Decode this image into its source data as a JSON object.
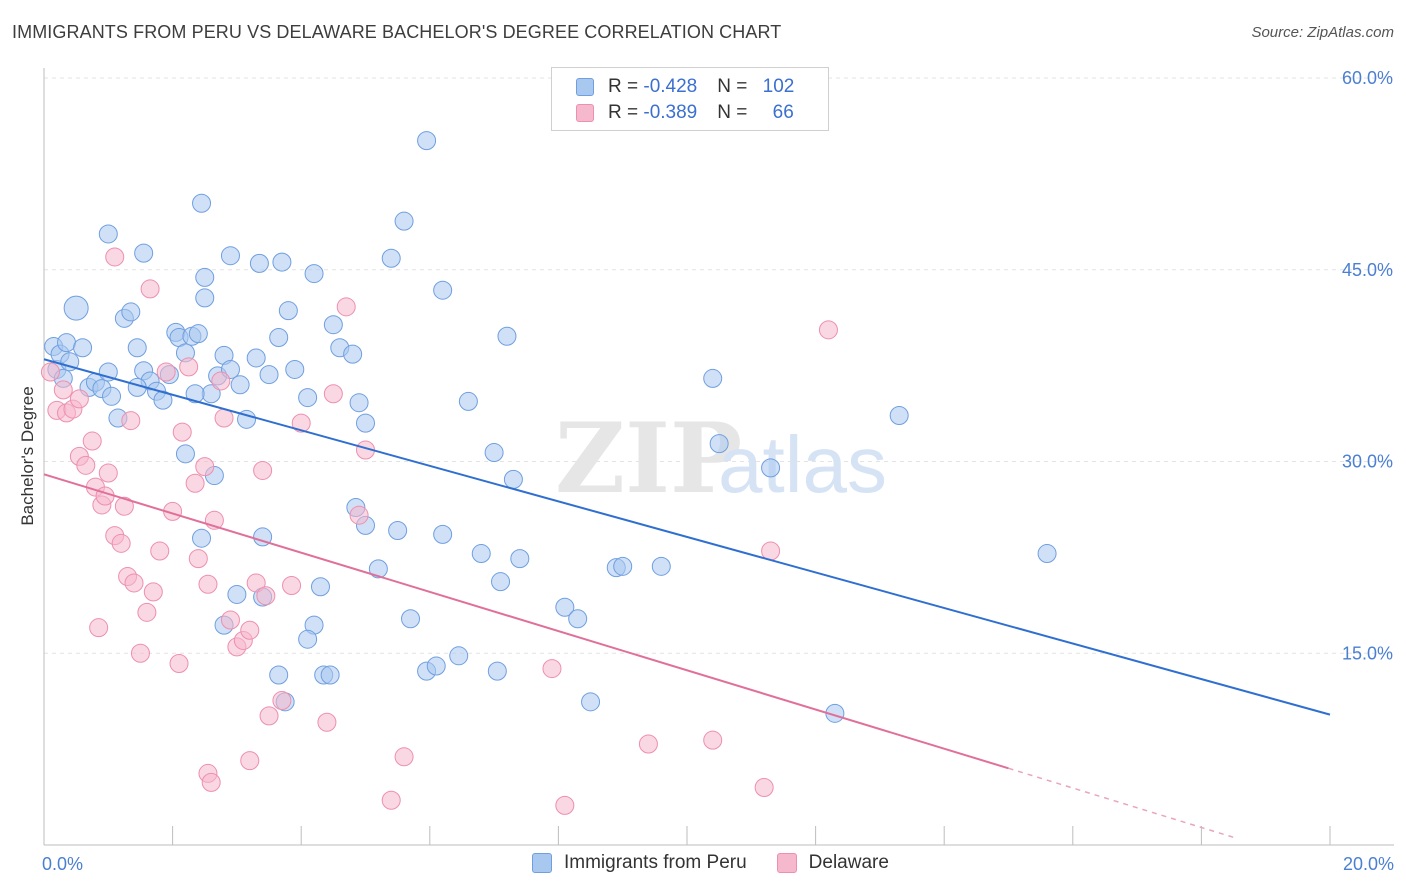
{
  "header": {
    "title": "IMMIGRANTS FROM PERU VS DELAWARE BACHELOR'S DEGREE CORRELATION CHART",
    "source": "Source: ZipAtlas.com"
  },
  "legend_top": {
    "rows": [
      {
        "r_label": "R = ",
        "r_value": "-0.428",
        "n_label": "N = ",
        "n_value": "102",
        "color": "#a9c8f0"
      },
      {
        "r_label": "R = ",
        "r_value": "-0.389",
        "n_label": "N = ",
        "n_value": "66",
        "color": "#f5b8cc"
      }
    ]
  },
  "legend_bottom": {
    "items": [
      {
        "label": "Immigrants from Peru",
        "color": "#a9c8f0"
      },
      {
        "label": "Delaware",
        "color": "#f5b8cc"
      }
    ]
  },
  "chart_data": {
    "type": "scatter",
    "xlabel": "",
    "ylabel": "Bachelor's Degree",
    "xlim": [
      0,
      20
    ],
    "ylim": [
      0,
      60
    ],
    "x_tick_labels": [
      "0.0%",
      "20.0%"
    ],
    "y_tick_values": [
      15,
      30,
      45,
      60
    ],
    "y_tick_labels": [
      "15.0%",
      "30.0%",
      "45.0%",
      "60.0%"
    ],
    "grid": true,
    "watermark": {
      "zip": "ZIP",
      "atlas": "atlas"
    },
    "series": [
      {
        "name": "Immigrants from Peru",
        "color": "#6f9fe0",
        "fill": "#a9c8f0",
        "trend": {
          "x0": 0.0,
          "y0": 38.0,
          "x1": 20.0,
          "y1": 10.2,
          "dash_from": null
        },
        "points": [
          [
            0.15,
            39.0
          ],
          [
            0.2,
            37.2
          ],
          [
            0.25,
            38.4
          ],
          [
            0.3,
            36.5
          ],
          [
            0.35,
            39.3
          ],
          [
            0.4,
            37.8
          ],
          [
            0.5,
            42.0
          ],
          [
            0.6,
            38.9
          ],
          [
            0.7,
            35.8
          ],
          [
            0.8,
            36.2
          ],
          [
            0.9,
            35.7
          ],
          [
            1.0,
            37.0
          ],
          [
            1.05,
            35.1
          ],
          [
            1.15,
            33.4
          ],
          [
            1.25,
            41.2
          ],
          [
            1.35,
            41.7
          ],
          [
            1.45,
            38.9
          ],
          [
            1.55,
            37.1
          ],
          [
            1.65,
            36.3
          ],
          [
            1.75,
            35.5
          ],
          [
            1.85,
            34.8
          ],
          [
            1.95,
            36.8
          ],
          [
            2.05,
            40.1
          ],
          [
            2.1,
            39.7
          ],
          [
            2.2,
            38.5
          ],
          [
            2.3,
            39.8
          ],
          [
            2.4,
            40.0
          ],
          [
            2.5,
            42.8
          ],
          [
            2.6,
            35.3
          ],
          [
            2.7,
            36.7
          ],
          [
            2.8,
            38.3
          ],
          [
            2.9,
            37.2
          ],
          [
            1.0,
            47.8
          ],
          [
            1.55,
            46.3
          ],
          [
            2.45,
            50.2
          ],
          [
            2.5,
            44.4
          ],
          [
            2.9,
            46.1
          ],
          [
            3.35,
            45.5
          ],
          [
            3.7,
            45.6
          ],
          [
            4.2,
            44.7
          ],
          [
            3.05,
            36.0
          ],
          [
            3.15,
            33.3
          ],
          [
            3.3,
            38.1
          ],
          [
            3.5,
            36.8
          ],
          [
            3.65,
            39.7
          ],
          [
            3.8,
            41.8
          ],
          [
            3.9,
            37.2
          ],
          [
            4.1,
            35.0
          ],
          [
            4.5,
            40.7
          ],
          [
            4.6,
            38.9
          ],
          [
            4.8,
            38.4
          ],
          [
            4.9,
            34.6
          ],
          [
            5.0,
            33.0
          ],
          [
            5.4,
            45.9
          ],
          [
            5.6,
            48.8
          ],
          [
            5.95,
            55.1
          ],
          [
            6.2,
            43.4
          ],
          [
            7.2,
            39.8
          ],
          [
            6.6,
            34.7
          ],
          [
            7.0,
            30.7
          ],
          [
            7.3,
            28.6
          ],
          [
            7.4,
            22.4
          ],
          [
            6.8,
            22.8
          ],
          [
            6.2,
            24.3
          ],
          [
            5.5,
            24.6
          ],
          [
            5.0,
            25.0
          ],
          [
            4.85,
            26.4
          ],
          [
            5.2,
            21.6
          ],
          [
            5.7,
            17.7
          ],
          [
            5.95,
            13.6
          ],
          [
            6.1,
            14.0
          ],
          [
            6.45,
            14.8
          ],
          [
            7.05,
            13.6
          ],
          [
            7.1,
            20.6
          ],
          [
            8.1,
            18.6
          ],
          [
            8.3,
            17.7
          ],
          [
            8.5,
            11.2
          ],
          [
            8.9,
            21.7
          ],
          [
            9.0,
            21.8
          ],
          [
            9.6,
            21.8
          ],
          [
            10.4,
            36.5
          ],
          [
            10.5,
            31.4
          ],
          [
            11.3,
            29.5
          ],
          [
            12.3,
            10.3
          ],
          [
            13.3,
            33.6
          ],
          [
            15.6,
            22.8
          ],
          [
            2.2,
            30.6
          ],
          [
            2.65,
            28.9
          ],
          [
            2.45,
            24.0
          ],
          [
            2.8,
            17.2
          ],
          [
            3.0,
            19.6
          ],
          [
            3.4,
            24.1
          ],
          [
            3.4,
            19.4
          ],
          [
            3.65,
            13.3
          ],
          [
            3.75,
            11.2
          ],
          [
            4.2,
            17.2
          ],
          [
            4.1,
            16.1
          ],
          [
            4.35,
            13.3
          ],
          [
            4.45,
            13.3
          ],
          [
            4.3,
            20.2
          ],
          [
            1.45,
            35.8
          ],
          [
            2.35,
            35.3
          ]
        ]
      },
      {
        "name": "Delaware",
        "color": "#ee8fae",
        "fill": "#f5b8cc",
        "trend": {
          "x0": 0.0,
          "y0": 29.0,
          "x1": 15.0,
          "y1": 6.0,
          "dash_to": {
            "x": 18.5,
            "y": 0.6
          }
        },
        "points": [
          [
            0.1,
            37.0
          ],
          [
            0.2,
            34.0
          ],
          [
            0.3,
            35.6
          ],
          [
            0.35,
            33.8
          ],
          [
            0.45,
            34.1
          ],
          [
            0.55,
            30.4
          ],
          [
            0.65,
            29.7
          ],
          [
            0.75,
            31.6
          ],
          [
            0.8,
            28.0
          ],
          [
            0.9,
            26.6
          ],
          [
            1.0,
            29.1
          ],
          [
            1.1,
            24.2
          ],
          [
            1.2,
            23.6
          ],
          [
            1.25,
            26.5
          ],
          [
            1.3,
            21.0
          ],
          [
            1.4,
            20.5
          ],
          [
            1.5,
            15.0
          ],
          [
            1.6,
            18.2
          ],
          [
            1.7,
            19.8
          ],
          [
            1.8,
            23.0
          ],
          [
            1.9,
            37.0
          ],
          [
            2.0,
            26.1
          ],
          [
            2.1,
            14.2
          ],
          [
            2.25,
            37.4
          ],
          [
            2.35,
            28.3
          ],
          [
            2.4,
            22.4
          ],
          [
            2.5,
            29.6
          ],
          [
            2.55,
            20.4
          ],
          [
            2.65,
            25.4
          ],
          [
            2.75,
            36.3
          ],
          [
            2.8,
            33.4
          ],
          [
            2.9,
            17.6
          ],
          [
            3.0,
            15.5
          ],
          [
            3.1,
            16.0
          ],
          [
            3.2,
            16.8
          ],
          [
            3.3,
            20.5
          ],
          [
            3.4,
            29.3
          ],
          [
            3.45,
            19.5
          ],
          [
            3.5,
            10.1
          ],
          [
            3.7,
            11.3
          ],
          [
            3.85,
            20.3
          ],
          [
            4.0,
            33.0
          ],
          [
            4.4,
            9.6
          ],
          [
            4.5,
            35.3
          ],
          [
            4.7,
            42.1
          ],
          [
            4.9,
            25.8
          ],
          [
            5.0,
            30.9
          ],
          [
            5.4,
            3.5
          ],
          [
            5.6,
            6.9
          ],
          [
            1.1,
            46.0
          ],
          [
            1.65,
            43.5
          ],
          [
            2.55,
            5.6
          ],
          [
            2.6,
            4.9
          ],
          [
            3.2,
            6.6
          ],
          [
            7.9,
            13.8
          ],
          [
            8.1,
            3.1
          ],
          [
            9.4,
            7.9
          ],
          [
            10.4,
            8.2
          ],
          [
            11.2,
            4.5
          ],
          [
            11.3,
            23.0
          ],
          [
            12.2,
            40.3
          ],
          [
            0.55,
            34.9
          ],
          [
            0.95,
            27.3
          ],
          [
            0.85,
            17.0
          ],
          [
            2.15,
            32.3
          ],
          [
            1.35,
            33.2
          ]
        ]
      }
    ]
  }
}
